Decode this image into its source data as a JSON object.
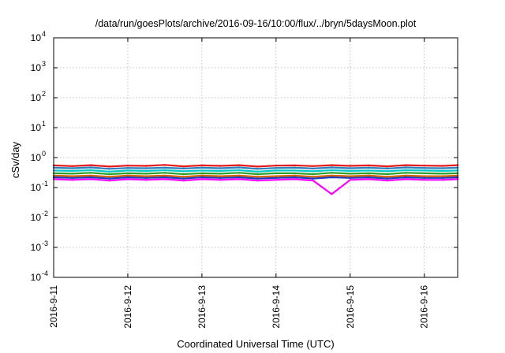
{
  "chart_data": {
    "type": "line",
    "title": "/data/run/goesPlots/archive/2016-09-16/10:00/flux/../bryn/5daysMoon.plot",
    "xlabel": "Coordinated Universal Time (UTC)",
    "ylabel": "cSv/day",
    "yscale": "log",
    "ylim": [
      0.0001,
      10000
    ],
    "xlim": [
      0,
      5.45
    ],
    "x_unit": "days since 2016-9-11 00:00 UTC",
    "grid": true,
    "y_ticks": [
      {
        "value": 0.0001,
        "base": "10",
        "exp": "-4"
      },
      {
        "value": 0.001,
        "base": "10",
        "exp": "-3"
      },
      {
        "value": 0.01,
        "base": "10",
        "exp": "-2"
      },
      {
        "value": 0.1,
        "base": "10",
        "exp": "-1"
      },
      {
        "value": 1,
        "base": "10",
        "exp": "0"
      },
      {
        "value": 10,
        "base": "10",
        "exp": "1"
      },
      {
        "value": 100,
        "base": "10",
        "exp": "2"
      },
      {
        "value": 1000,
        "base": "10",
        "exp": "3"
      },
      {
        "value": 10000,
        "base": "10",
        "exp": "4"
      }
    ],
    "x_ticks": [
      {
        "value": 0,
        "label": "2016-9-11"
      },
      {
        "value": 1,
        "label": "2016-9-12"
      },
      {
        "value": 2,
        "label": "2016-9-13"
      },
      {
        "value": 3,
        "label": "2016-9-14"
      },
      {
        "value": 4,
        "label": "2016-9-15"
      },
      {
        "value": 5,
        "label": "2016-9-16"
      }
    ],
    "x": [
      0,
      0.25,
      0.5,
      0.75,
      1,
      1.25,
      1.5,
      1.75,
      2,
      2.25,
      2.5,
      2.75,
      3,
      3.25,
      3.5,
      3.75,
      4,
      4.25,
      4.5,
      4.75,
      5,
      5.25,
      5.45
    ],
    "series": [
      {
        "color": "#e41a1c",
        "values": [
          0.55,
          0.52,
          0.56,
          0.5,
          0.54,
          0.53,
          0.57,
          0.51,
          0.55,
          0.53,
          0.56,
          0.5,
          0.54,
          0.55,
          0.52,
          0.56,
          0.53,
          0.55,
          0.51,
          0.56,
          0.54,
          0.53,
          0.56
        ]
      },
      {
        "color": "#2c7fb8",
        "values": [
          0.46,
          0.44,
          0.47,
          0.42,
          0.45,
          0.44,
          0.46,
          0.43,
          0.46,
          0.44,
          0.47,
          0.42,
          0.45,
          0.46,
          0.43,
          0.47,
          0.44,
          0.46,
          0.43,
          0.47,
          0.45,
          0.44,
          0.46
        ]
      },
      {
        "color": "#00c8c8",
        "values": [
          0.37,
          0.36,
          0.38,
          0.34,
          0.37,
          0.36,
          0.38,
          0.35,
          0.37,
          0.36,
          0.38,
          0.34,
          0.37,
          0.37,
          0.35,
          0.38,
          0.36,
          0.37,
          0.35,
          0.38,
          0.37,
          0.36,
          0.37
        ]
      },
      {
        "color": "#2ca02c",
        "values": [
          0.3,
          0.29,
          0.31,
          0.28,
          0.3,
          0.29,
          0.31,
          0.28,
          0.3,
          0.29,
          0.31,
          0.28,
          0.3,
          0.3,
          0.28,
          0.31,
          0.29,
          0.3,
          0.28,
          0.31,
          0.3,
          0.29,
          0.3
        ]
      },
      {
        "color": "#d95f02",
        "values": [
          0.25,
          0.24,
          0.25,
          0.23,
          0.25,
          0.24,
          0.25,
          0.23,
          0.25,
          0.24,
          0.25,
          0.23,
          0.24,
          0.25,
          0.23,
          0.25,
          0.24,
          0.25,
          0.23,
          0.25,
          0.24,
          0.24,
          0.25
        ]
      },
      {
        "color": "#1f3fbf",
        "values": [
          0.22,
          0.21,
          0.22,
          0.2,
          0.22,
          0.21,
          0.22,
          0.2,
          0.22,
          0.21,
          0.22,
          0.2,
          0.21,
          0.22,
          0.2,
          0.22,
          0.21,
          0.22,
          0.2,
          0.22,
          0.21,
          0.21,
          0.22
        ]
      },
      {
        "color": "#ff00ff",
        "values": [
          0.19,
          0.18,
          0.19,
          0.17,
          0.19,
          0.18,
          0.19,
          0.17,
          0.19,
          0.18,
          0.19,
          0.17,
          0.18,
          0.19,
          0.17,
          0.06,
          0.18,
          0.19,
          0.17,
          0.19,
          0.18,
          0.18,
          0.19
        ]
      }
    ]
  }
}
